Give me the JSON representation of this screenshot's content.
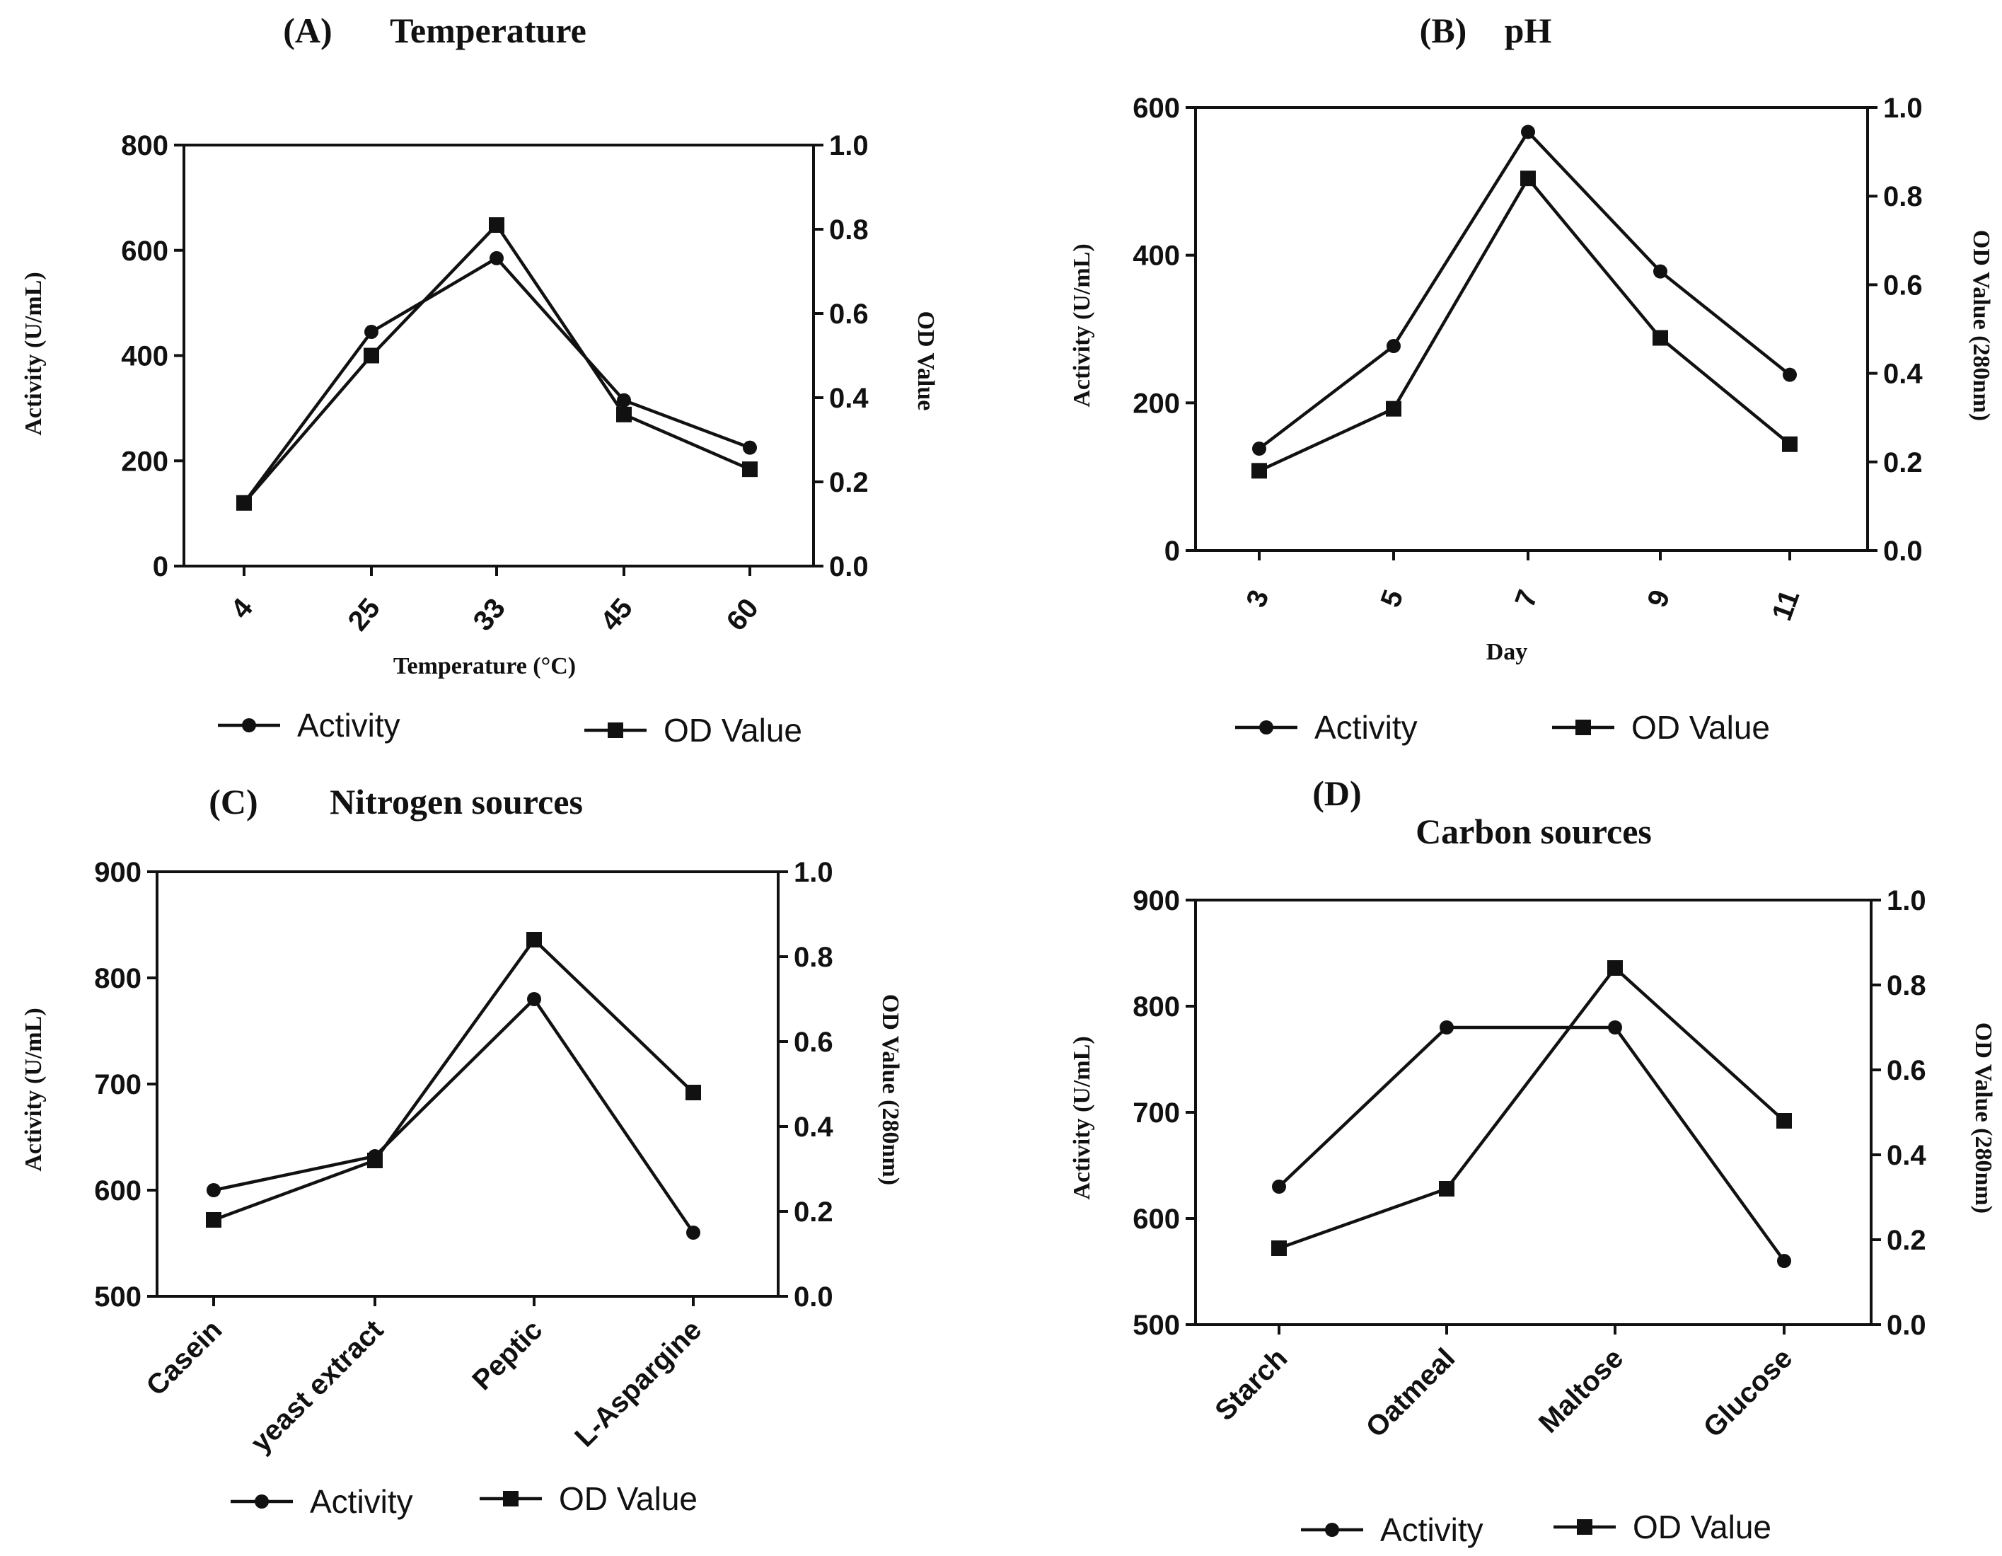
{
  "chart_data": [
    {
      "type": "line",
      "panel_label": "(A)",
      "title": "Temperature",
      "categories": [
        "4",
        "25",
        "33",
        "45",
        "60"
      ],
      "xlabel": "Temperature (°C)",
      "ylabel": "Activity (U/mL)",
      "y2label": "OD Value",
      "ylim": [
        0,
        800
      ],
      "y_ticks": [
        0,
        200,
        400,
        600,
        800
      ],
      "y_tick_labels": [
        "0",
        "200",
        "400",
        "600",
        "800"
      ],
      "y2lim": [
        0,
        1.0
      ],
      "y2_ticks": [
        0,
        0.2,
        0.4,
        0.6,
        0.8,
        1.0
      ],
      "y2_tick_labels": [
        "0.0",
        "0.2",
        "0.4",
        "0.6",
        "0.8",
        "1.0"
      ],
      "series": [
        {
          "name": "Activity",
          "axis": "left",
          "marker": "circle",
          "values": [
            120,
            445,
            585,
            315,
            225
          ]
        },
        {
          "name": "OD Value",
          "axis": "right",
          "marker": "square",
          "values": [
            0.15,
            0.5,
            0.81,
            0.36,
            0.23
          ]
        }
      ],
      "legend": [
        "Activity",
        "OD Value"
      ]
    },
    {
      "type": "line",
      "panel_label": "(B)",
      "title": "pH",
      "categories": [
        "3",
        "5",
        "7",
        "9",
        "11"
      ],
      "xlabel": "Day",
      "ylabel": "Activity (U/mL)",
      "y2label": "OD Value (280nm)",
      "ylim": [
        0,
        600
      ],
      "y_ticks": [
        0,
        200,
        400,
        600
      ],
      "y_tick_labels": [
        "0",
        "200",
        "400",
        "600"
      ],
      "y2lim": [
        0,
        1.0
      ],
      "y2_ticks": [
        0,
        0.2,
        0.4,
        0.6,
        0.8,
        1.0
      ],
      "y2_tick_labels": [
        "0.0",
        "0.2",
        "0.4",
        "0.6",
        "0.8",
        "1.0"
      ],
      "series": [
        {
          "name": "Activity",
          "axis": "left",
          "marker": "circle",
          "values": [
            138,
            277,
            567,
            378,
            238
          ]
        },
        {
          "name": "OD Value",
          "axis": "right",
          "marker": "square",
          "values": [
            0.18,
            0.32,
            0.84,
            0.48,
            0.24
          ]
        }
      ],
      "legend": [
        "Activity",
        "OD Value"
      ]
    },
    {
      "type": "line",
      "panel_label": "(C)",
      "title": "Nitrogen sources",
      "categories": [
        "Casein",
        "yeast extract",
        "Peptic",
        "L-Aspargine"
      ],
      "xlabel": "",
      "ylabel": "Activity (U/mL)",
      "y2label": "OD Value (280nm)",
      "ylim": [
        500,
        900
      ],
      "y_ticks": [
        500,
        600,
        700,
        800,
        900
      ],
      "y_tick_labels": [
        "500",
        "600",
        "700",
        "800",
        "900"
      ],
      "y2lim": [
        0,
        1.0
      ],
      "y2_ticks": [
        0,
        0.2,
        0.4,
        0.6,
        0.8,
        1.0
      ],
      "y2_tick_labels": [
        "0.0",
        "0.2",
        "0.4",
        "0.6",
        "0.8",
        "1.0"
      ],
      "series": [
        {
          "name": "Activity",
          "axis": "left",
          "marker": "circle",
          "values": [
            600,
            632,
            780,
            560
          ]
        },
        {
          "name": "OD Value",
          "axis": "right",
          "marker": "square",
          "values": [
            0.18,
            0.32,
            0.84,
            0.48
          ]
        }
      ],
      "legend": [
        "Activity",
        "OD Value"
      ]
    },
    {
      "type": "line",
      "panel_label": "(D)",
      "title": "Carbon sources",
      "categories": [
        "Starch",
        "Oatmeal",
        "Maltose",
        "Glucose"
      ],
      "xlabel": "",
      "ylabel": "Activity (U/mL)",
      "y2label": "OD Value (280nm)",
      "ylim": [
        500,
        900
      ],
      "y_ticks": [
        500,
        600,
        700,
        800,
        900
      ],
      "y_tick_labels": [
        "500",
        "600",
        "700",
        "800",
        "900"
      ],
      "y2lim": [
        0,
        1.0
      ],
      "y2_ticks": [
        0,
        0.2,
        0.4,
        0.6,
        0.8,
        1.0
      ],
      "y2_tick_labels": [
        "0.0",
        "0.2",
        "0.4",
        "0.6",
        "0.8",
        "1.0"
      ],
      "series": [
        {
          "name": "Activity",
          "axis": "left",
          "marker": "circle",
          "values": [
            630,
            780,
            780,
            560
          ]
        },
        {
          "name": "OD Value",
          "axis": "right",
          "marker": "square",
          "values": [
            0.18,
            0.32,
            0.84,
            0.48
          ]
        }
      ],
      "legend": [
        "Activity",
        "OD Value"
      ]
    }
  ]
}
